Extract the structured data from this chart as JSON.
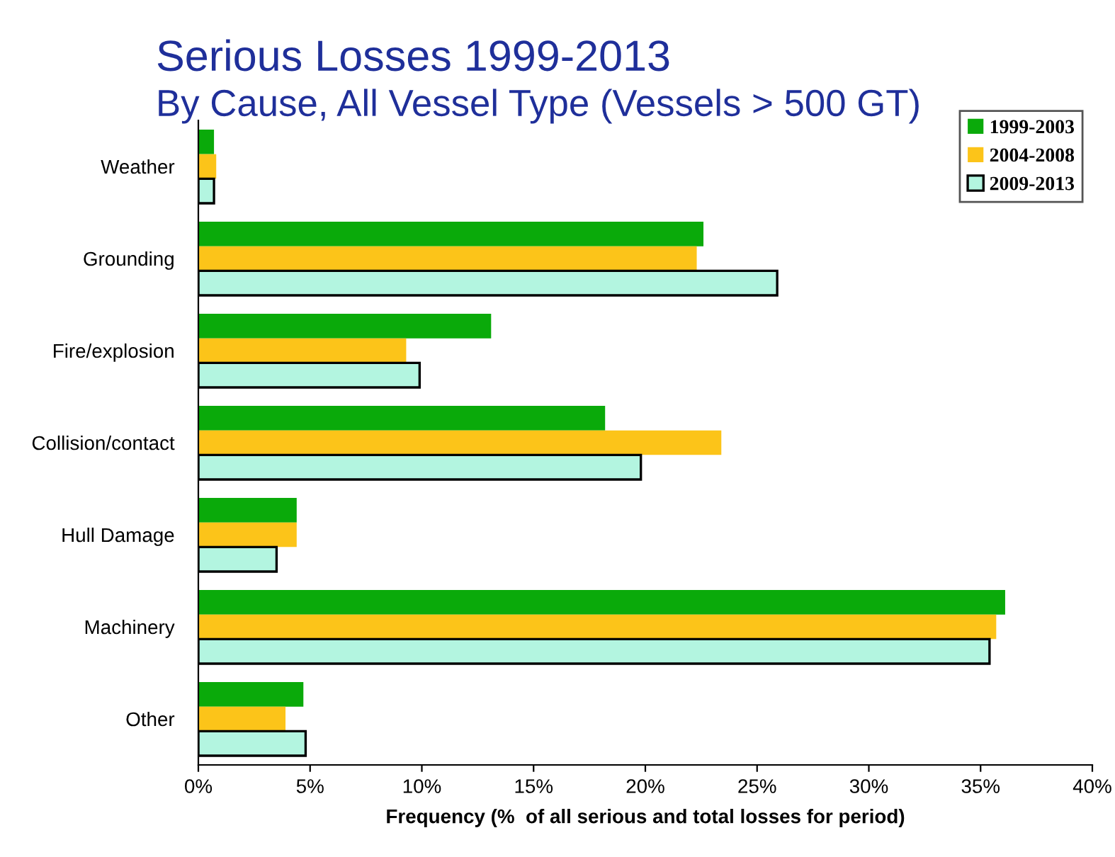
{
  "chart_data": {
    "type": "bar",
    "orientation": "horizontal",
    "title": "Serious Losses 1999-2013",
    "subtitle": "By Cause, All Vessel Type (Vessels > 500 GT)",
    "xlabel": "Frequency (%  of all serious and total losses for period)",
    "categories": [
      "Weather",
      "Grounding",
      "Fire/explosion",
      "Collision/contact",
      "Hull Damage",
      "Machinery",
      "Other"
    ],
    "series": [
      {
        "name": "1999-2003",
        "color": "#0aaa0a",
        "values": [
          0.7,
          22.6,
          13.1,
          18.2,
          4.4,
          36.1,
          4.7
        ]
      },
      {
        "name": "2004-2008",
        "color": "#fcc419",
        "values": [
          0.8,
          22.3,
          9.3,
          23.4,
          4.4,
          35.7,
          3.9
        ]
      },
      {
        "name": "2009-2013",
        "color": "#b3f5e0",
        "values": [
          0.7,
          25.9,
          9.9,
          19.8,
          3.5,
          35.4,
          4.8
        ]
      }
    ],
    "xlim": [
      0,
      40
    ],
    "xticks": [
      {
        "value": 0,
        "label": "0%"
      },
      {
        "value": 5,
        "label": "5%"
      },
      {
        "value": 10,
        "label": "10%"
      },
      {
        "value": 15,
        "label": "15%"
      },
      {
        "value": 20,
        "label": "20%"
      },
      {
        "value": 25,
        "label": "25%"
      },
      {
        "value": 30,
        "label": "30%"
      },
      {
        "value": 35,
        "label": "35%"
      },
      {
        "value": 40,
        "label": "40%"
      }
    ],
    "legend": "top right",
    "grid": false
  }
}
